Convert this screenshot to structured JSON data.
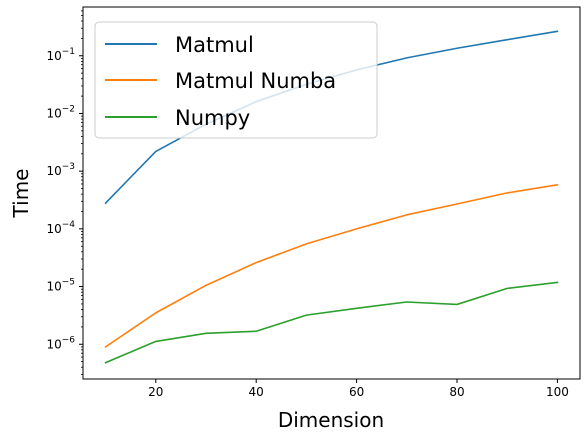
{
  "chart_data": {
    "type": "line",
    "title": "",
    "xlabel": "Dimension",
    "ylabel": "Time",
    "yscale": "log",
    "xlim": [
      5.5,
      104.5
    ],
    "ylim": [
      2.5e-07,
      0.7
    ],
    "grid": false,
    "legend_position": "top-left",
    "x": [
      10,
      20,
      30,
      40,
      50,
      60,
      70,
      80,
      90,
      100
    ],
    "x_ticks": [
      {
        "value": 20,
        "label": "20"
      },
      {
        "value": 40,
        "label": "40"
      },
      {
        "value": 60,
        "label": "60"
      },
      {
        "value": 80,
        "label": "80"
      },
      {
        "value": 100,
        "label": "100"
      }
    ],
    "y_ticks": [
      {
        "value": 1e-06,
        "base": "10",
        "exp": "−6"
      },
      {
        "value": 1e-05,
        "base": "10",
        "exp": "−5"
      },
      {
        "value": 0.0001,
        "base": "10",
        "exp": "−4"
      },
      {
        "value": 0.001,
        "base": "10",
        "exp": "−3"
      },
      {
        "value": 0.01,
        "base": "10",
        "exp": "−2"
      },
      {
        "value": 0.1,
        "base": "10",
        "exp": "−1"
      }
    ],
    "series": [
      {
        "name": "Matmul",
        "color": "#1f77b4",
        "values": [
          0.00028,
          0.0022,
          0.0065,
          0.016,
          0.032,
          0.057,
          0.092,
          0.135,
          0.19,
          0.265
        ]
      },
      {
        "name": "Matmul Numba",
        "color": "#ff7f0e",
        "values": [
          9e-07,
          3.5e-06,
          1.05e-05,
          2.6e-05,
          5.5e-05,
          0.0001,
          0.000175,
          0.00027,
          0.00042,
          0.00058
        ]
      },
      {
        "name": "Numpy",
        "color": "#2ca02c",
        "values": [
          4.8e-07,
          1.12e-06,
          1.55e-06,
          1.68e-06,
          3.2e-06,
          4.2e-06,
          5.4e-06,
          4.9e-06,
          9.3e-06,
          1.18e-05
        ]
      }
    ]
  }
}
